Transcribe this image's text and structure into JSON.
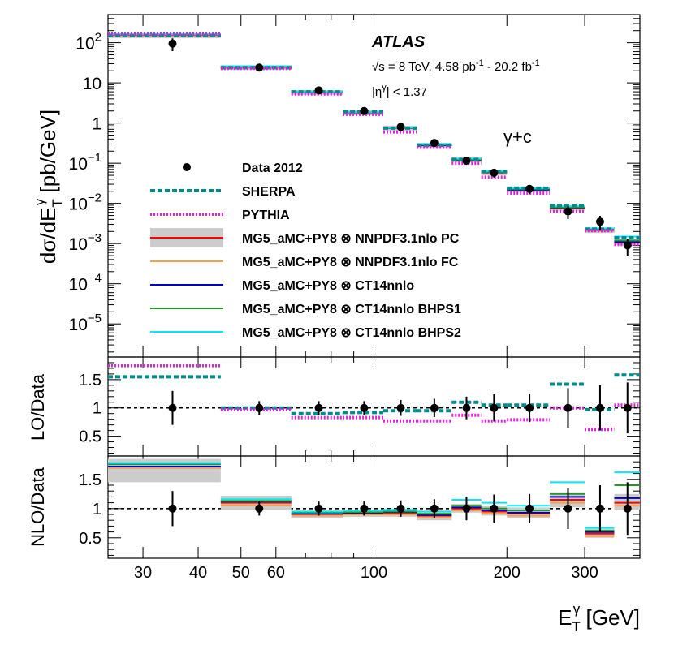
{
  "chart_data": {
    "type": "scatter",
    "experiment": "ATLAS",
    "annotations": {
      "sqrt_s_symbol": "√s",
      "energy_lumi": " = 8 TeV, 4.58 pb",
      "lumi_exp": "-1",
      "lumi_sep": " - 20.2 fb",
      "eta_cut_prefix": "|η",
      "eta_cut_sup": "γ",
      "eta_cut_suffix": "| < 1.37",
      "process": "γ+c"
    },
    "xlabel": {
      "main": "E",
      "sub": "T",
      "sup": "γ",
      "unit": " [GeV]"
    },
    "ylabel_top": {
      "main": "dσ/dE",
      "sub": "T",
      "sup": "γ",
      "unit": " [pb/GeV]"
    },
    "ylabel_lo": "LO/Data",
    "ylabel_nlo": "NLO/Data",
    "xlim": [
      25,
      400
    ],
    "ylim_top": [
      1.5e-06,
      500
    ],
    "ylim_ratio": [
      0.15,
      1.9
    ],
    "x_ticks": [
      "30",
      "40",
      "50",
      "60",
      "100",
      "200",
      "300"
    ],
    "x_tick_values": [
      30,
      40,
      50,
      60,
      100,
      200,
      300
    ],
    "y_ticks_top": [
      {
        "value": 100,
        "base": "10",
        "exp": "2"
      },
      {
        "value": 10,
        "base": "10",
        "exp": ""
      },
      {
        "value": 1,
        "base": "1",
        "exp": ""
      },
      {
        "value": 0.1,
        "base": "10",
        "exp": "−1"
      },
      {
        "value": 0.01,
        "base": "10",
        "exp": "−2"
      },
      {
        "value": 0.001,
        "base": "10",
        "exp": "−3"
      },
      {
        "value": 0.0001,
        "base": "10",
        "exp": "−4"
      },
      {
        "value": 1e-05,
        "base": "10",
        "exp": "−5"
      }
    ],
    "y_ticks_ratio": [
      "0.5",
      "1",
      "1.5"
    ],
    "y_tick_ratio_values": [
      0.5,
      1,
      1.5
    ],
    "bins": [
      [
        25,
        45
      ],
      [
        45,
        65
      ],
      [
        65,
        85
      ],
      [
        85,
        105
      ],
      [
        105,
        125
      ],
      [
        125,
        150
      ],
      [
        150,
        175
      ],
      [
        175,
        200
      ],
      [
        200,
        250
      ],
      [
        250,
        300
      ],
      [
        300,
        350
      ],
      [
        350,
        400
      ]
    ],
    "data": {
      "name": "Data 2012",
      "x": [
        35,
        55,
        75,
        95,
        115,
        137,
        162,
        187,
        225,
        275,
        325,
        375
      ],
      "y": [
        95,
        24,
        6.5,
        2.0,
        0.8,
        0.32,
        0.115,
        0.058,
        0.023,
        0.0063,
        0.0035,
        0.0009
      ],
      "err_frac": [
        0.35,
        0.12,
        0.12,
        0.12,
        0.14,
        0.16,
        0.2,
        0.24,
        0.25,
        0.35,
        0.4,
        0.45
      ]
    },
    "series": [
      {
        "name": "SHERPA",
        "color": "#008b8b",
        "style": "dashed",
        "values": [
          150,
          24,
          6.0,
          1.9,
          0.75,
          0.28,
          0.125,
          0.062,
          0.024,
          0.0088,
          0.0023,
          0.0014
        ]
      },
      {
        "name": "PYTHIA",
        "color": "#e020e0",
        "style": "dotted",
        "values": [
          165,
          23,
          5.3,
          1.65,
          0.6,
          0.25,
          0.1,
          0.045,
          0.018,
          0.0063,
          0.0021,
          0.00095
        ]
      },
      {
        "name": "MG5_aMC+PY8 ⊗ NNPDF3.1nlo PC",
        "color": "#ff0000",
        "style": "solid",
        "band": true,
        "values": [
          150,
          24,
          5.8,
          1.8,
          0.75,
          0.28,
          0.12,
          0.058,
          0.022,
          0.0075,
          0.0021,
          0.00105
        ]
      },
      {
        "name": "MG5_aMC+PY8 ⊗ NNPDF3.1nlo FC",
        "color": "#ffa040",
        "style": "solid",
        "values": [
          150,
          24,
          5.8,
          1.8,
          0.75,
          0.28,
          0.12,
          0.058,
          0.022,
          0.0075,
          0.0021,
          0.00105
        ]
      },
      {
        "name": "MG5_aMC+PY8 ⊗ CT14nnlo",
        "color": "#0000cc",
        "style": "solid",
        "values": [
          160,
          25,
          5.9,
          1.85,
          0.76,
          0.28,
          0.122,
          0.059,
          0.022,
          0.0078,
          0.0022,
          0.0011
        ]
      },
      {
        "name": "MG5_aMC+PY8 ⊗ CT14nnlo BHPS1",
        "color": "#229922",
        "style": "solid",
        "values": [
          163,
          25,
          6.0,
          1.85,
          0.77,
          0.29,
          0.125,
          0.06,
          0.023,
          0.008,
          0.0023,
          0.0012
        ]
      },
      {
        "name": "MG5_aMC+PY8 ⊗ CT14nnlo BHPS2",
        "color": "#00e8ff",
        "style": "solid",
        "values": [
          165,
          26,
          6.1,
          1.9,
          0.78,
          0.3,
          0.13,
          0.064,
          0.024,
          0.0085,
          0.0024,
          0.0015
        ]
      }
    ],
    "ratio_lo": {
      "sherpa": [
        1.55,
        1.0,
        0.9,
        0.92,
        0.95,
        0.95,
        1.1,
        1.05,
        1.05,
        1.42,
        0.97,
        1.58
      ],
      "pythia": [
        1.75,
        0.97,
        0.83,
        0.83,
        0.77,
        0.77,
        0.87,
        0.77,
        0.79,
        1.0,
        0.62,
        1.05
      ],
      "data_err": [
        0.3,
        0.12,
        0.12,
        0.12,
        0.14,
        0.16,
        0.2,
        0.24,
        0.25,
        0.35,
        0.4,
        0.45
      ]
    },
    "ratio_nlo": {
      "band_lo": [
        1.45,
        0.98,
        0.84,
        0.86,
        0.86,
        0.8,
        0.93,
        0.88,
        0.84,
        1.02,
        0.5,
        0.98
      ],
      "band_hi": [
        1.85,
        1.22,
        0.96,
        0.98,
        0.98,
        0.95,
        1.08,
        1.05,
        1.02,
        1.28,
        0.66,
        1.25
      ],
      "pc": [
        1.7,
        1.1,
        0.9,
        0.92,
        0.93,
        0.88,
        1.0,
        0.95,
        0.92,
        1.15,
        0.57,
        1.1
      ],
      "fc": [
        1.7,
        1.06,
        0.88,
        0.9,
        0.9,
        0.85,
        0.97,
        0.92,
        0.88,
        1.1,
        0.53,
        1.05
      ],
      "ct14": [
        1.72,
        1.12,
        0.91,
        0.93,
        0.94,
        0.89,
        1.02,
        0.97,
        0.93,
        1.2,
        0.6,
        1.18
      ],
      "bhps1": [
        1.76,
        1.13,
        0.93,
        0.94,
        0.95,
        0.91,
        1.05,
        1.0,
        0.97,
        1.25,
        0.62,
        1.4
      ],
      "bhps2": [
        1.78,
        1.16,
        0.95,
        0.96,
        0.98,
        0.95,
        1.15,
        1.1,
        1.05,
        1.45,
        0.67,
        1.62
      ]
    },
    "legend_position": "lower-left"
  }
}
